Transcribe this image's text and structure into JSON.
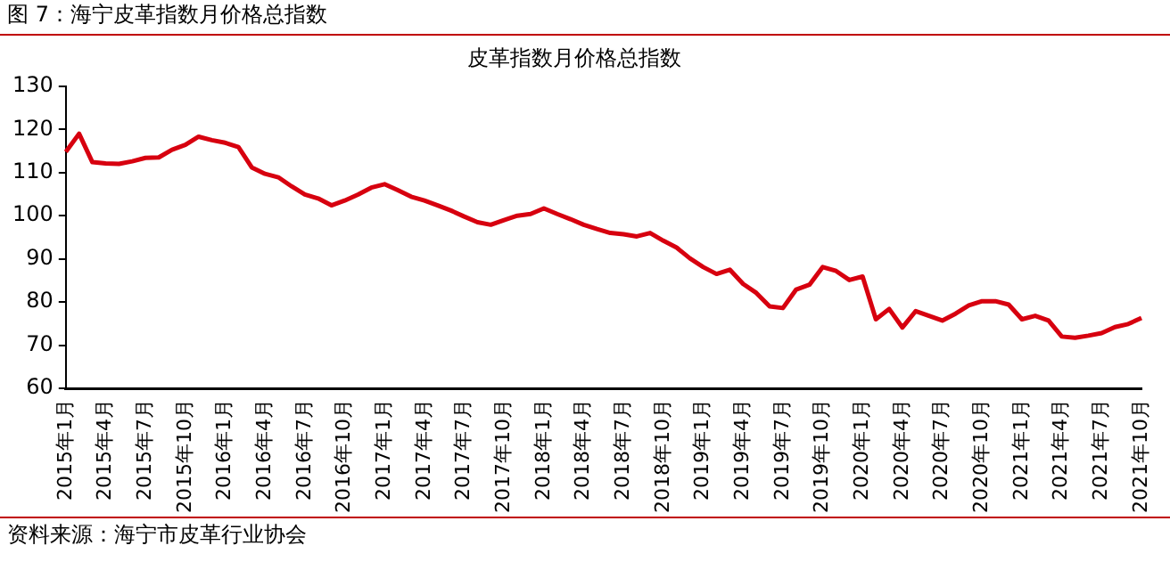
{
  "chart_data": {
    "type": "line",
    "title": "皮革指数月价格总指数",
    "categories": [
      "2015年1月",
      null,
      null,
      "2015年4月",
      null,
      null,
      "2015年7月",
      null,
      null,
      "2015年10月",
      null,
      null,
      "2016年1月",
      null,
      null,
      "2016年4月",
      null,
      null,
      "2016年7月",
      null,
      null,
      "2016年10月",
      null,
      null,
      "2017年1月",
      null,
      null,
      "2017年4月",
      null,
      null,
      "2017年7月",
      null,
      null,
      "2017年10月",
      null,
      null,
      "2018年1月",
      null,
      null,
      "2018年4月",
      null,
      null,
      "2018年7月",
      null,
      null,
      "2018年10月",
      null,
      null,
      "2019年1月",
      null,
      null,
      "2019年4月",
      null,
      null,
      "2019年7月",
      null,
      null,
      "2019年10月",
      null,
      null,
      "2020年1月",
      null,
      null,
      "2020年4月",
      null,
      null,
      "2020年7月",
      null,
      null,
      "2020年10月",
      null,
      null,
      "2021年1月",
      null,
      null,
      "2021年4月",
      null,
      null,
      "2021年7月",
      null,
      null,
      "2021年10月"
    ],
    "series": [
      {
        "color": "#d7000f",
        "values": [
          114.8,
          119,
          112.4,
          112.1,
          112,
          112.6,
          113.4,
          113.5,
          115.3,
          116.4,
          118.3,
          117.5,
          116.9,
          115.9,
          111.2,
          109.7,
          108.9,
          106.8,
          104.9,
          104,
          102.4,
          103.5,
          104.9,
          106.5,
          107.3,
          105.9,
          104.4,
          103.5,
          102.4,
          101.2,
          99.8,
          98.5,
          97.9,
          99,
          100,
          100.4,
          101.7,
          100.4,
          99.2,
          97.9,
          96.9,
          96,
          95.7,
          95.2,
          96,
          94.2,
          92.6,
          90.1,
          88.1,
          86.5,
          87.5,
          84.2,
          82.1,
          79,
          78.6,
          82.9,
          84,
          88.1,
          87.2,
          85.1,
          85.9,
          76,
          78.4,
          74.1,
          77.9,
          76.8,
          75.7,
          77.3,
          79.2,
          80.2,
          80.2,
          79.4,
          76,
          76.8,
          75.7,
          72,
          71.7,
          72.2,
          72.8,
          74.2,
          74.9,
          76.3
        ]
      }
    ],
    "ylim": [
      60,
      130
    ],
    "yticks": [
      60,
      70,
      80,
      90,
      100,
      110,
      120,
      130
    ],
    "grid": false,
    "legend": false,
    "marker": "none",
    "line_style": "solid",
    "annotations": [
      "图 7：海宁皮革指数月价格总指数",
      "资料来源：海宁市皮革行业协会"
    ]
  }
}
